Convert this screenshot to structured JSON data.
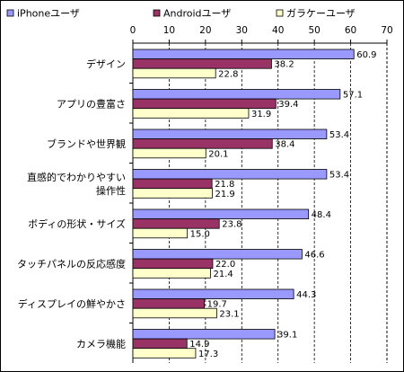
{
  "chart_data": {
    "type": "bar",
    "orientation": "horizontal",
    "categories": [
      [
        "デザイン"
      ],
      [
        "アプリの豊富さ"
      ],
      [
        "ブランドや世界観"
      ],
      [
        "直感的でわかりやすい",
        "操作性"
      ],
      [
        "ボディの形状・サイズ"
      ],
      [
        "タッチパネルの反応感度"
      ],
      [
        "ディスプレイの鮮やかさ"
      ],
      [
        "カメラ機能"
      ]
    ],
    "series": [
      {
        "name": "iPhoneユーザ",
        "color": "#9999ff",
        "values": [
          60.9,
          57.1,
          53.4,
          53.4,
          48.4,
          46.6,
          44.3,
          39.1
        ]
      },
      {
        "name": "Androidユーザ",
        "color": "#993366",
        "values": [
          38.2,
          39.4,
          38.4,
          21.8,
          23.8,
          22.0,
          19.7,
          14.9
        ]
      },
      {
        "name": "ガラケーユーザ",
        "color": "#ffffcc",
        "values": [
          22.8,
          31.9,
          20.1,
          21.9,
          15.0,
          21.4,
          23.1,
          17.3
        ]
      }
    ],
    "value_labels": [
      [
        "60.9",
        "57.1",
        "53.4",
        "53.4",
        "48.4",
        "46.6",
        "44.3",
        "39.1"
      ],
      [
        "38.2",
        "39.4",
        "38.4",
        "21.8",
        "23.8",
        "22.0",
        "19.7",
        "14.9"
      ],
      [
        "22.8",
        "31.9",
        "20.1",
        "21.9",
        "15.0",
        "21.4",
        "23.1",
        "17.3"
      ]
    ],
    "xlim": [
      0,
      70
    ],
    "xticks": [
      "0",
      "10",
      "20",
      "30",
      "40",
      "50",
      "60",
      "70"
    ],
    "grid": "vertical-dashed",
    "legend_position": "top"
  }
}
